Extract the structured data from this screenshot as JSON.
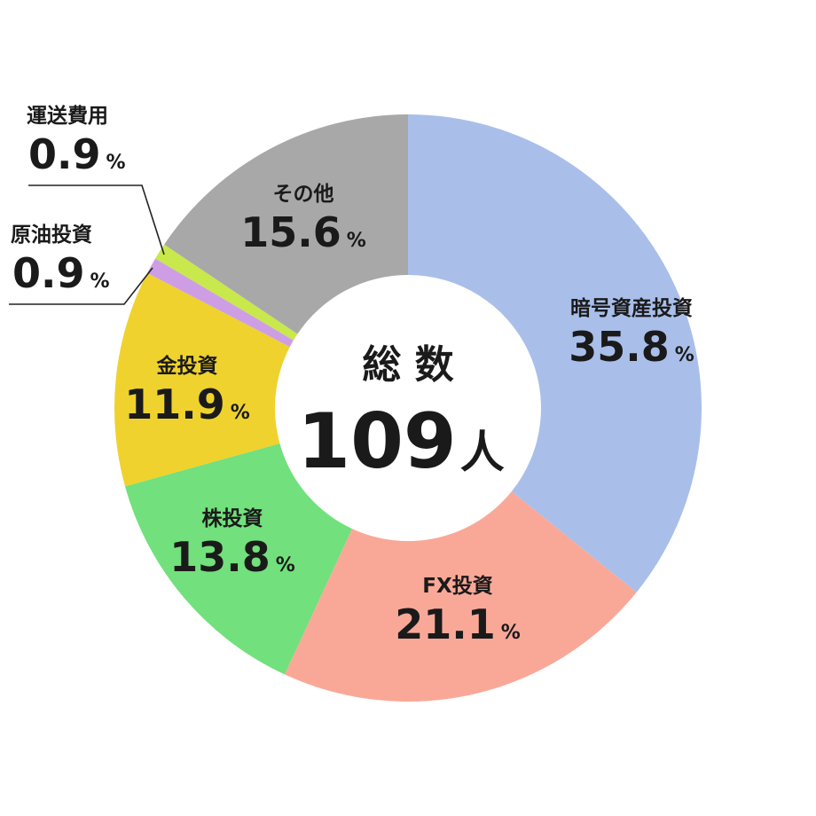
{
  "chart_data": {
    "type": "pie",
    "donut": true,
    "center": {
      "label": "総 数",
      "value": "109",
      "unit": "人"
    },
    "percent_suffix": "%",
    "slices": [
      {
        "name": "暗号資産投資",
        "value": 35.8,
        "value_text": "35.8",
        "color": "#a9bfea"
      },
      {
        "name": "FX投資",
        "value": 21.1,
        "value_text": "21.1",
        "color": "#f9a898"
      },
      {
        "name": "株投資",
        "value": 13.8,
        "value_text": "13.8",
        "color": "#72e07c"
      },
      {
        "name": "金投資",
        "value": 11.9,
        "value_text": "11.9",
        "color": "#efd22d"
      },
      {
        "name": "原油投資",
        "value": 0.9,
        "value_text": "0.9",
        "color": "#cd9ee4"
      },
      {
        "name": "運送費用",
        "value": 0.9,
        "value_text": "0.9",
        "color": "#c8e84c"
      },
      {
        "name": "その他",
        "value": 15.6,
        "value_text": "15.6",
        "color": "#a8a8a8"
      }
    ]
  }
}
